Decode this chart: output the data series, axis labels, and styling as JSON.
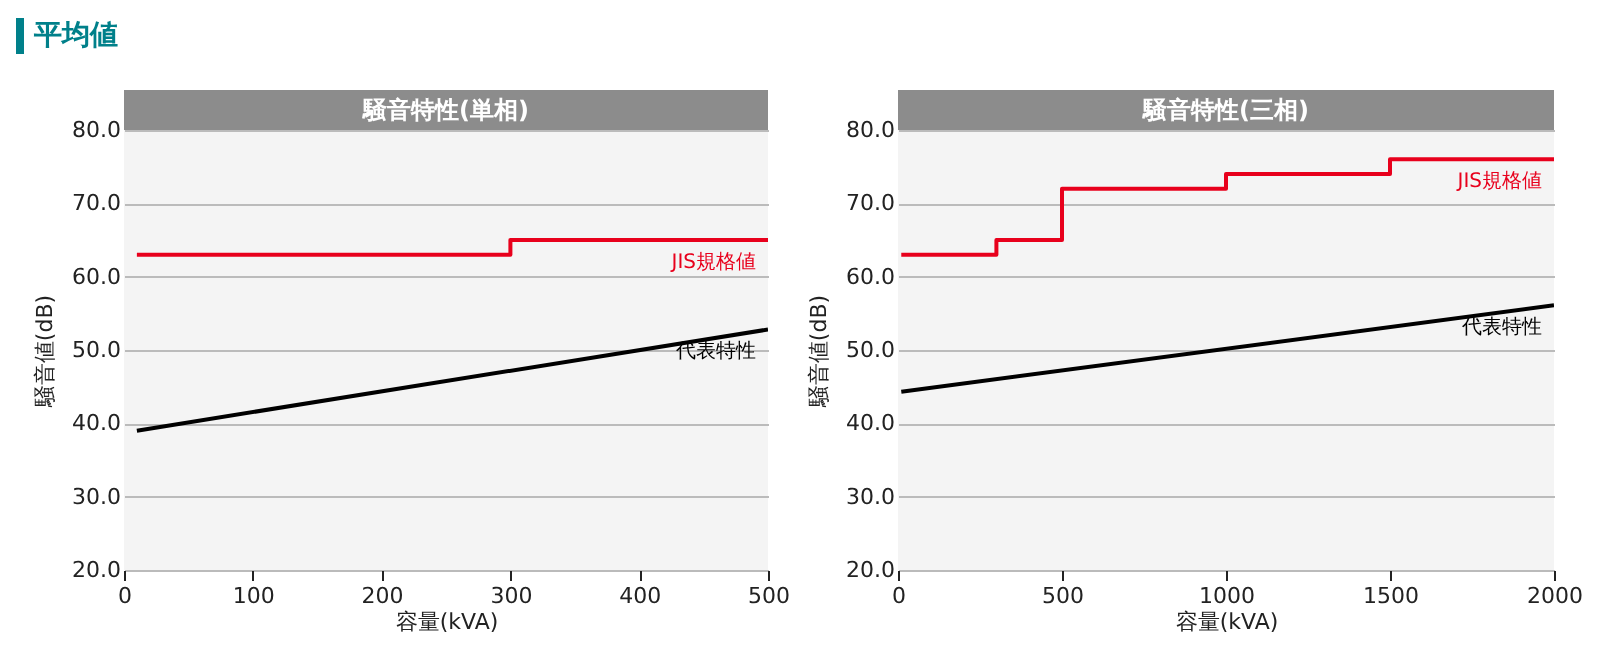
{
  "chart_data": [
    {
      "type": "line",
      "title": "騒音特性(単相)",
      "annotations": [
        "平均値"
      ],
      "xlabel": "容量(kVA)",
      "ylabel": "騒音値(dB)",
      "series": [
        {
          "name": "JIS規格値",
          "color": "#e8001c",
          "type": "step",
          "x": [
            10,
            300,
            500
          ],
          "values": [
            63,
            65,
            65
          ]
        },
        {
          "name": "代表特性",
          "color": "#000000",
          "type": "line",
          "x": [
            10,
            500
          ],
          "values": [
            39,
            52.8
          ]
        }
      ],
      "xlim": [
        0,
        500
      ],
      "xticks": [
        0,
        100,
        200,
        300,
        400,
        500
      ],
      "ylim": [
        20,
        80
      ],
      "yticks": [
        {
          "value": 20,
          "label": "20.0"
        },
        {
          "value": 30,
          "label": "30.0"
        },
        {
          "value": 40,
          "label": "40.0"
        },
        {
          "value": 50,
          "label": "50.0"
        },
        {
          "value": 60,
          "label": "60.0"
        },
        {
          "value": 70,
          "label": "70.0"
        },
        {
          "value": 80,
          "label": "80.0"
        }
      ],
      "grid": "y"
    },
    {
      "type": "line",
      "title": "騒音特性(三相)",
      "xlabel": "容量(kVA)",
      "ylabel": "騒音値(dB)",
      "series": [
        {
          "name": "JIS規格値",
          "color": "#e8001c",
          "type": "step",
          "x": [
            10,
            300,
            500,
            1000,
            1500,
            2000
          ],
          "values": [
            63,
            65,
            72,
            74,
            76,
            76
          ]
        },
        {
          "name": "代表特性",
          "color": "#000000",
          "type": "line",
          "x": [
            10,
            2000
          ],
          "values": [
            44.3,
            56.1
          ]
        }
      ],
      "xlim": [
        0,
        2000
      ],
      "xticks": [
        0,
        500,
        1000,
        1500,
        2000
      ],
      "ylim": [
        20,
        80
      ],
      "yticks": [
        {
          "value": 20,
          "label": "20.0"
        },
        {
          "value": 30,
          "label": "30.0"
        },
        {
          "value": 40,
          "label": "40.0"
        },
        {
          "value": 50,
          "label": "50.0"
        },
        {
          "value": 60,
          "label": "60.0"
        },
        {
          "value": 70,
          "label": "70.0"
        },
        {
          "value": 80,
          "label": "80.0"
        }
      ],
      "grid": "y"
    }
  ]
}
